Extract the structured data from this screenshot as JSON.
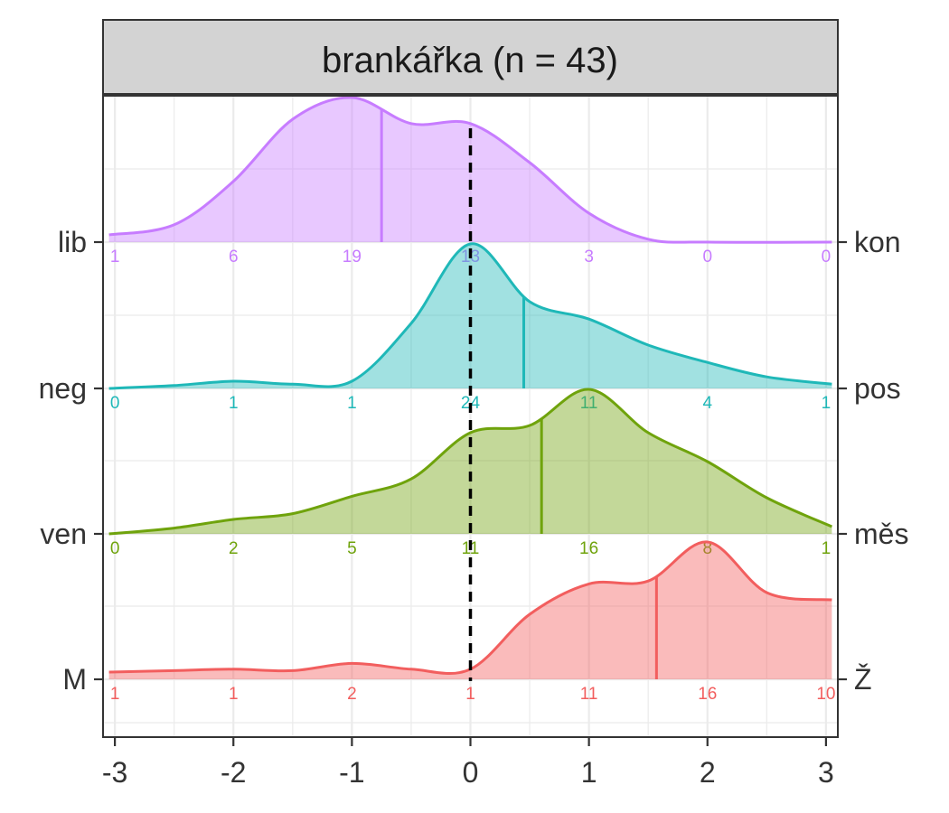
{
  "chart_data": {
    "type": "ridgeline",
    "facet_title": "brankářka (n = 43)",
    "x_ticks": [
      -3,
      -2,
      -1,
      0,
      1,
      2,
      3
    ],
    "xlim": [
      -3.1,
      3.1
    ],
    "reference_line_x": 0,
    "grid": true,
    "series": [
      {
        "left_label": "lib",
        "right_label": "kon",
        "color": "#C77CFF",
        "mean": -0.75,
        "density": [
          [
            -3.05,
            0.05
          ],
          [
            -2.5,
            0.12
          ],
          [
            -2,
            0.42
          ],
          [
            -1.5,
            0.85
          ],
          [
            -1,
            1.0
          ],
          [
            -0.5,
            0.82
          ],
          [
            0,
            0.82
          ],
          [
            0.5,
            0.55
          ],
          [
            1,
            0.2
          ],
          [
            1.5,
            0.02
          ],
          [
            2,
            0
          ],
          [
            3.05,
            0
          ]
        ],
        "counts": [
          {
            "x": -3,
            "n": "1"
          },
          {
            "x": -2,
            "n": "6"
          },
          {
            "x": -1,
            "n": "19"
          },
          {
            "x": 0,
            "n": "13"
          },
          {
            "x": 1,
            "n": "3"
          },
          {
            "x": 2,
            "n": "0"
          },
          {
            "x": 3,
            "n": "0"
          }
        ]
      },
      {
        "left_label": "neg",
        "right_label": "pos",
        "color": "#1FB8B8",
        "mean": 0.45,
        "density": [
          [
            -3.05,
            0
          ],
          [
            -2.5,
            0.02
          ],
          [
            -2,
            0.05
          ],
          [
            -1.5,
            0.03
          ],
          [
            -1,
            0.05
          ],
          [
            -0.5,
            0.45
          ],
          [
            0,
            1.0
          ],
          [
            0.5,
            0.6
          ],
          [
            1,
            0.48
          ],
          [
            1.5,
            0.3
          ],
          [
            2,
            0.18
          ],
          [
            2.5,
            0.08
          ],
          [
            3.05,
            0.03
          ]
        ],
        "counts": [
          {
            "x": -3,
            "n": "0"
          },
          {
            "x": -2,
            "n": "1"
          },
          {
            "x": -1,
            "n": "1"
          },
          {
            "x": 0,
            "n": "24"
          },
          {
            "x": 1,
            "n": "11"
          },
          {
            "x": 2,
            "n": "4"
          },
          {
            "x": 3,
            "n": "1"
          }
        ]
      },
      {
        "left_label": "ven",
        "right_label": "měs",
        "color": "#6FA30C",
        "mean": 0.6,
        "density": [
          [
            -3.05,
            0
          ],
          [
            -2.5,
            0.04
          ],
          [
            -2,
            0.1
          ],
          [
            -1.5,
            0.14
          ],
          [
            -1,
            0.26
          ],
          [
            -0.5,
            0.38
          ],
          [
            0,
            0.7
          ],
          [
            0.5,
            0.75
          ],
          [
            1,
            1.0
          ],
          [
            1.5,
            0.7
          ],
          [
            2,
            0.5
          ],
          [
            2.5,
            0.25
          ],
          [
            3.05,
            0.05
          ]
        ],
        "counts": [
          {
            "x": -3,
            "n": "0"
          },
          {
            "x": -2,
            "n": "2"
          },
          {
            "x": -1,
            "n": "5"
          },
          {
            "x": 0,
            "n": "11"
          },
          {
            "x": 1,
            "n": "16"
          },
          {
            "x": 2,
            "n": "8"
          },
          {
            "x": 3,
            "n": "1"
          }
        ]
      },
      {
        "left_label": "M",
        "right_label": "Ž",
        "color": "#F25E5E",
        "mean": 1.57,
        "density": [
          [
            -3.05,
            0.05
          ],
          [
            -2.5,
            0.06
          ],
          [
            -2,
            0.07
          ],
          [
            -1.5,
            0.06
          ],
          [
            -1,
            0.11
          ],
          [
            -0.5,
            0.07
          ],
          [
            0,
            0.07
          ],
          [
            0.5,
            0.45
          ],
          [
            1,
            0.66
          ],
          [
            1.5,
            0.68
          ],
          [
            2,
            0.95
          ],
          [
            2.5,
            0.6
          ],
          [
            3.05,
            0.55
          ]
        ],
        "counts": [
          {
            "x": -3,
            "n": "1"
          },
          {
            "x": -2,
            "n": "1"
          },
          {
            "x": -1,
            "n": "2"
          },
          {
            "x": 0,
            "n": "1"
          },
          {
            "x": 1,
            "n": "11"
          },
          {
            "x": 2,
            "n": "16"
          },
          {
            "x": 3,
            "n": "10"
          }
        ]
      }
    ]
  }
}
